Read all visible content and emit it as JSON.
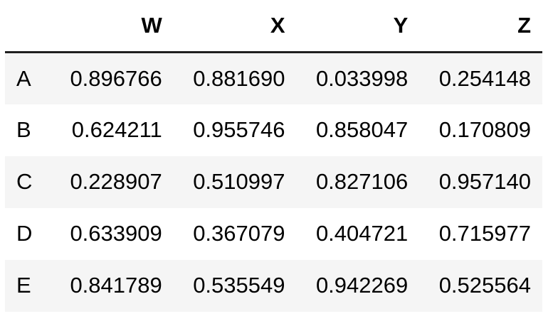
{
  "table": {
    "columns": [
      "W",
      "X",
      "Y",
      "Z"
    ],
    "rows": [
      {
        "index": "A",
        "values": [
          "0.896766",
          "0.881690",
          "0.033998",
          "0.254148"
        ]
      },
      {
        "index": "B",
        "values": [
          "0.624211",
          "0.955746",
          "0.858047",
          "0.170809"
        ]
      },
      {
        "index": "C",
        "values": [
          "0.228907",
          "0.510997",
          "0.827106",
          "0.957140"
        ]
      },
      {
        "index": "D",
        "values": [
          "0.633909",
          "0.367079",
          "0.404721",
          "0.715977"
        ]
      },
      {
        "index": "E",
        "values": [
          "0.841789",
          "0.535549",
          "0.942269",
          "0.525564"
        ]
      }
    ]
  }
}
